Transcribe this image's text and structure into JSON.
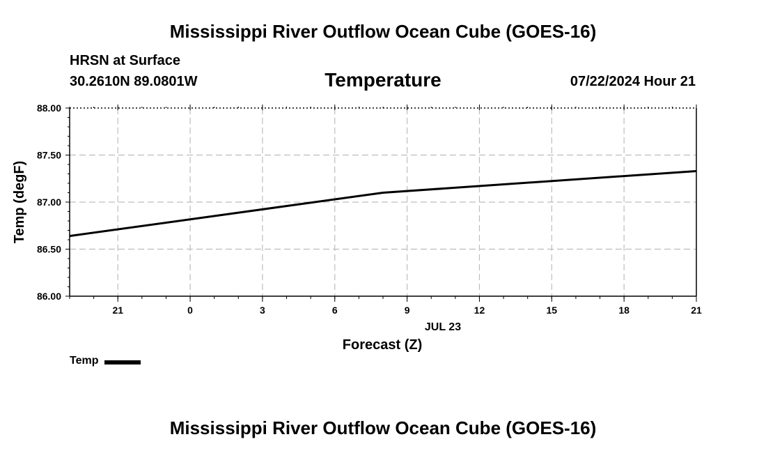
{
  "header": {
    "title": "Mississippi River Outflow Ocean Cube (GOES-16)",
    "site": "HRSN at Surface",
    "location": "30.2610N  89.0801W",
    "parameter": "Temperature",
    "valid_time": "07/22/2024 Hour 21"
  },
  "footer": {
    "title": "Mississippi River Outflow Ocean Cube (GOES-16)"
  },
  "chart_data": {
    "type": "line",
    "title": "Temperature",
    "xlabel": "Forecast (Z)",
    "ylabel": "Temp (degF)",
    "date_label": "JUL 23",
    "xlim": [
      19,
      45
    ],
    "ylim": [
      86.0,
      88.0
    ],
    "x_ticks": [
      21,
      24,
      27,
      30,
      33,
      36,
      39,
      42,
      45
    ],
    "x_tick_labels": [
      "21",
      "0",
      "3",
      "6",
      "9",
      "12",
      "15",
      "18",
      "21"
    ],
    "y_ticks": [
      86.0,
      86.5,
      87.0,
      87.5,
      88.0
    ],
    "y_tick_labels": [
      "86.00",
      "86.50",
      "87.00",
      "87.50",
      "88.00"
    ],
    "grid": true,
    "series": [
      {
        "name": "Temp",
        "color": "#000000",
        "x": [
          19,
          32,
          45
        ],
        "values": [
          86.64,
          87.1,
          87.33
        ]
      }
    ],
    "legend": [
      {
        "label": "Temp",
        "color": "#000000"
      }
    ]
  }
}
